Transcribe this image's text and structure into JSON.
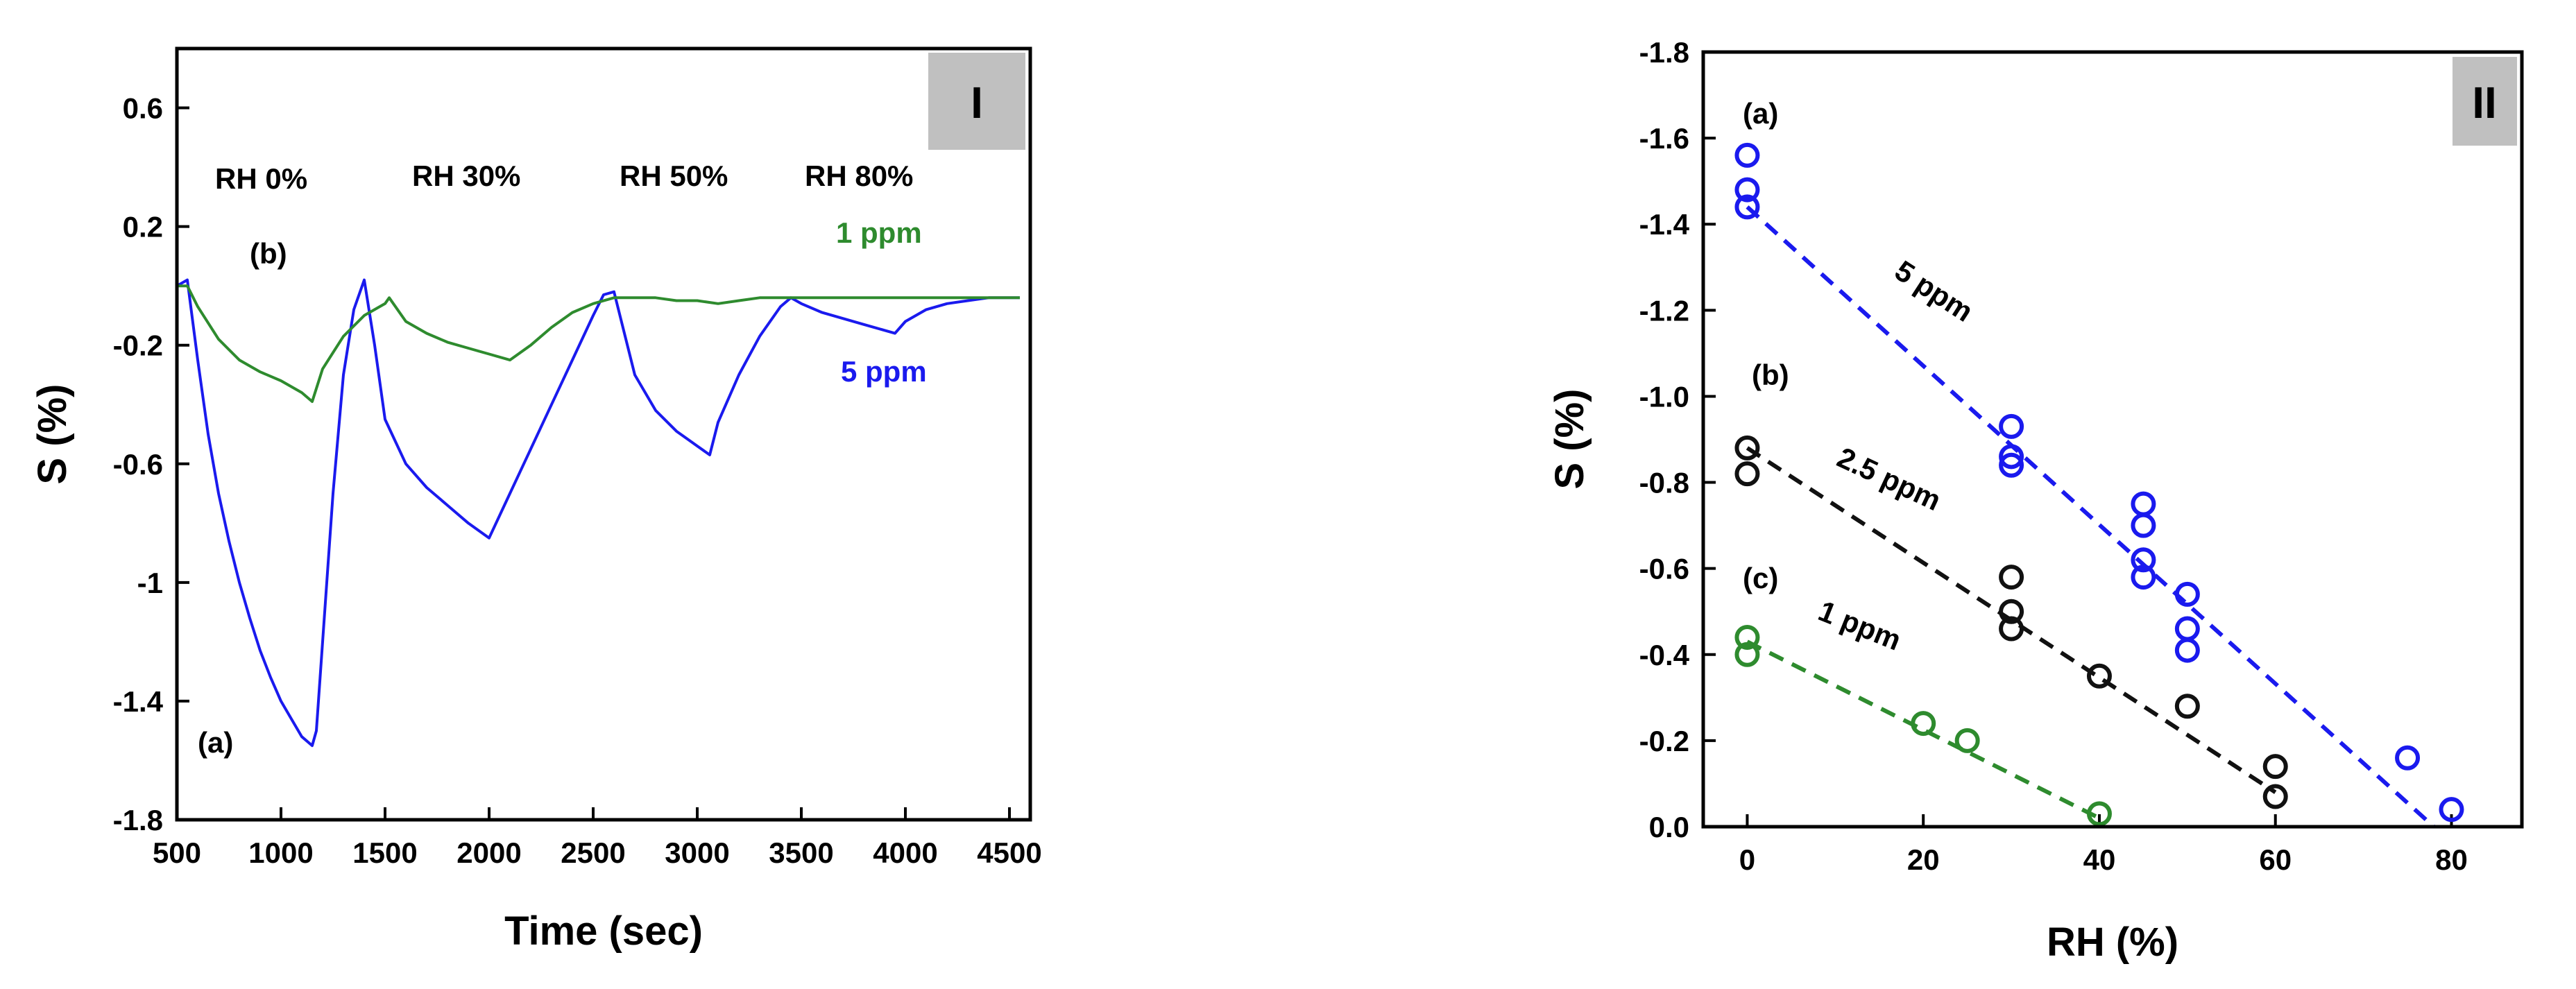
{
  "chart_data": [
    {
      "type": "line",
      "panel_label": "I",
      "xlabel": "Time (sec)",
      "ylabel": "S (%)",
      "xlim": [
        500,
        4600
      ],
      "ylim": [
        -1.8,
        0.8
      ],
      "xticks": [
        "500",
        "1000",
        "1500",
        "2000",
        "2500",
        "3000",
        "3500",
        "4000",
        "4500"
      ],
      "yticks": [
        "0.6",
        "0.2",
        "-0.2",
        "-0.6",
        "-1",
        "-1.4",
        "-1.8"
      ],
      "grid": false,
      "annotations": [
        "RH 0%",
        "RH 30%",
        "RH 50%",
        "RH 80%",
        "(b)",
        "(a)"
      ],
      "series": [
        {
          "name": "5 ppm",
          "color": "#1a1aee",
          "x": [
            500,
            550,
            600,
            650,
            700,
            750,
            800,
            850,
            900,
            950,
            1000,
            1050,
            1100,
            1150,
            1170,
            1200,
            1250,
            1300,
            1350,
            1400,
            1450,
            1500,
            1600,
            1700,
            1800,
            1900,
            2000,
            2100,
            2200,
            2300,
            2400,
            2500,
            2550,
            2600,
            2700,
            2800,
            2900,
            3000,
            3060,
            3100,
            3200,
            3300,
            3400,
            3450,
            3500,
            3600,
            3700,
            3800,
            3900,
            3950,
            4000,
            4100,
            4200,
            4300,
            4400,
            4550
          ],
          "y": [
            0.0,
            0.02,
            -0.25,
            -0.5,
            -0.7,
            -0.86,
            -1.0,
            -1.12,
            -1.23,
            -1.32,
            -1.4,
            -1.46,
            -1.52,
            -1.55,
            -1.5,
            -1.2,
            -0.7,
            -0.3,
            -0.08,
            0.02,
            -0.2,
            -0.45,
            -0.6,
            -0.68,
            -0.74,
            -0.8,
            -0.85,
            -0.7,
            -0.55,
            -0.4,
            -0.25,
            -0.1,
            -0.03,
            -0.02,
            -0.3,
            -0.42,
            -0.49,
            -0.54,
            -0.57,
            -0.46,
            -0.3,
            -0.17,
            -0.07,
            -0.04,
            -0.06,
            -0.09,
            -0.11,
            -0.13,
            -0.15,
            -0.16,
            -0.12,
            -0.08,
            -0.06,
            -0.05,
            -0.04,
            -0.04
          ]
        },
        {
          "name": "1 ppm",
          "color": "#2e8b2e",
          "x": [
            500,
            550,
            600,
            700,
            800,
            900,
            1000,
            1100,
            1150,
            1200,
            1300,
            1400,
            1500,
            1520,
            1600,
            1700,
            1800,
            1900,
            2000,
            2100,
            2200,
            2300,
            2400,
            2500,
            2600,
            2700,
            2800,
            2900,
            3000,
            3100,
            3200,
            3300,
            3400,
            3500,
            3700,
            3900,
            4100,
            4300,
            4550
          ],
          "y": [
            0.0,
            0.0,
            -0.07,
            -0.18,
            -0.25,
            -0.29,
            -0.32,
            -0.36,
            -0.39,
            -0.28,
            -0.17,
            -0.1,
            -0.06,
            -0.04,
            -0.12,
            -0.16,
            -0.19,
            -0.21,
            -0.23,
            -0.25,
            -0.2,
            -0.14,
            -0.09,
            -0.06,
            -0.04,
            -0.04,
            -0.04,
            -0.05,
            -0.05,
            -0.06,
            -0.05,
            -0.04,
            -0.04,
            -0.04,
            -0.04,
            -0.04,
            -0.04,
            -0.04,
            -0.04
          ]
        }
      ]
    },
    {
      "type": "scatter",
      "panel_label": "II",
      "xlabel": "RH (%)",
      "ylabel": "S (%)",
      "xlim": [
        -5,
        88
      ],
      "ylim": [
        0.0,
        -1.8
      ],
      "xticks": [
        "0",
        "20",
        "40",
        "60",
        "80"
      ],
      "yticks": [
        "-1.8",
        "-1.6",
        "-1.4",
        "-1.2",
        "-1.0",
        "-0.8",
        "-0.6",
        "-0.4",
        "-0.2",
        "0.0"
      ],
      "grid": false,
      "annotations": [
        "(a)",
        "(b)",
        "(c)"
      ],
      "series": [
        {
          "name": "5 ppm",
          "tag": "(a)",
          "color": "#1a1aee",
          "x": [
            0,
            0,
            0,
            30,
            30,
            30,
            45,
            45,
            45,
            45,
            50,
            50,
            50,
            75,
            80
          ],
          "y": [
            -1.56,
            -1.48,
            -1.44,
            -0.93,
            -0.86,
            -0.84,
            -0.75,
            -0.7,
            -0.62,
            -0.58,
            -0.54,
            -0.46,
            -0.41,
            -0.16,
            -0.04
          ],
          "fit": [
            [
              0,
              -1.44
            ],
            [
              78,
              0.0
            ]
          ]
        },
        {
          "name": "2.5 ppm",
          "tag": "(b)",
          "color": "#111111",
          "x": [
            0,
            0,
            30,
            30,
            30,
            40,
            50,
            60,
            60
          ],
          "y": [
            -0.88,
            -0.82,
            -0.58,
            -0.5,
            -0.46,
            -0.35,
            -0.28,
            -0.14,
            -0.07
          ],
          "fit": [
            [
              0,
              -0.88
            ],
            [
              60,
              -0.08
            ]
          ]
        },
        {
          "name": "1 ppm",
          "tag": "(c)",
          "color": "#2e8b2e",
          "x": [
            0,
            0,
            20,
            25,
            40
          ],
          "y": [
            -0.44,
            -0.4,
            -0.24,
            -0.2,
            -0.03
          ],
          "fit": [
            [
              0,
              -0.43
            ],
            [
              40,
              -0.02
            ]
          ]
        }
      ]
    }
  ]
}
